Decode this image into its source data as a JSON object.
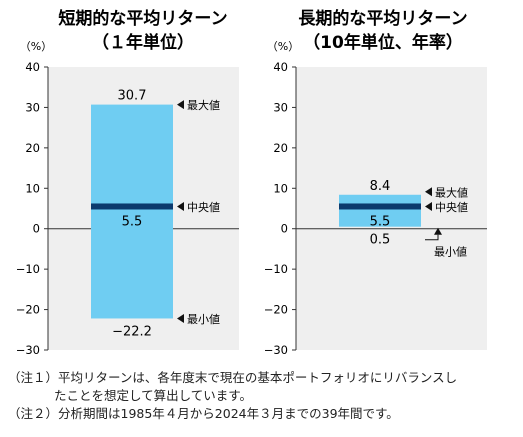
{
  "chart_data": [
    {
      "type": "range_bar",
      "title": "短期的な平均リターン",
      "subtitle": "（１年単位）",
      "unit_label": "（%）",
      "ylim": [
        -30,
        40
      ],
      "yticks": [
        "40",
        "30",
        "20",
        "10",
        "0",
        "−10",
        "−20",
        "−30"
      ],
      "grid": false,
      "bar_color": "#6fcdf2",
      "median_color": "#0b3a6e",
      "max": 30.7,
      "median": 5.5,
      "min": -22.2,
      "max_text": "30.7",
      "median_text": "5.5",
      "min_text": "−22.2",
      "annotations": {
        "max": "最大値",
        "median": "中央値",
        "min": "最小値"
      }
    },
    {
      "type": "range_bar",
      "title": "長期的な平均リターン",
      "subtitle": "（10年単位、年率）",
      "unit_label": "（%）",
      "ylim": [
        -30,
        40
      ],
      "yticks": [
        "40",
        "30",
        "20",
        "10",
        "0",
        "−10",
        "−20",
        "−30"
      ],
      "grid": false,
      "bar_color": "#6fcdf2",
      "median_color": "#0b3a6e",
      "max": 8.4,
      "median": 5.5,
      "min": 0.5,
      "max_text": "8.4",
      "median_text": "5.5",
      "min_text": "0.5",
      "annotations": {
        "max": "最大値",
        "median": "中央値",
        "min": "最小値"
      }
    }
  ],
  "notes": {
    "note1_line1": "（注１）平均リターンは、各年度末で現在の基本ポートフォリオにリバランスし",
    "note1_line2": "たことを想定して算出しています。",
    "note2": "（注２）分析期間は1985年４月から2024年３月までの39年間です。"
  }
}
